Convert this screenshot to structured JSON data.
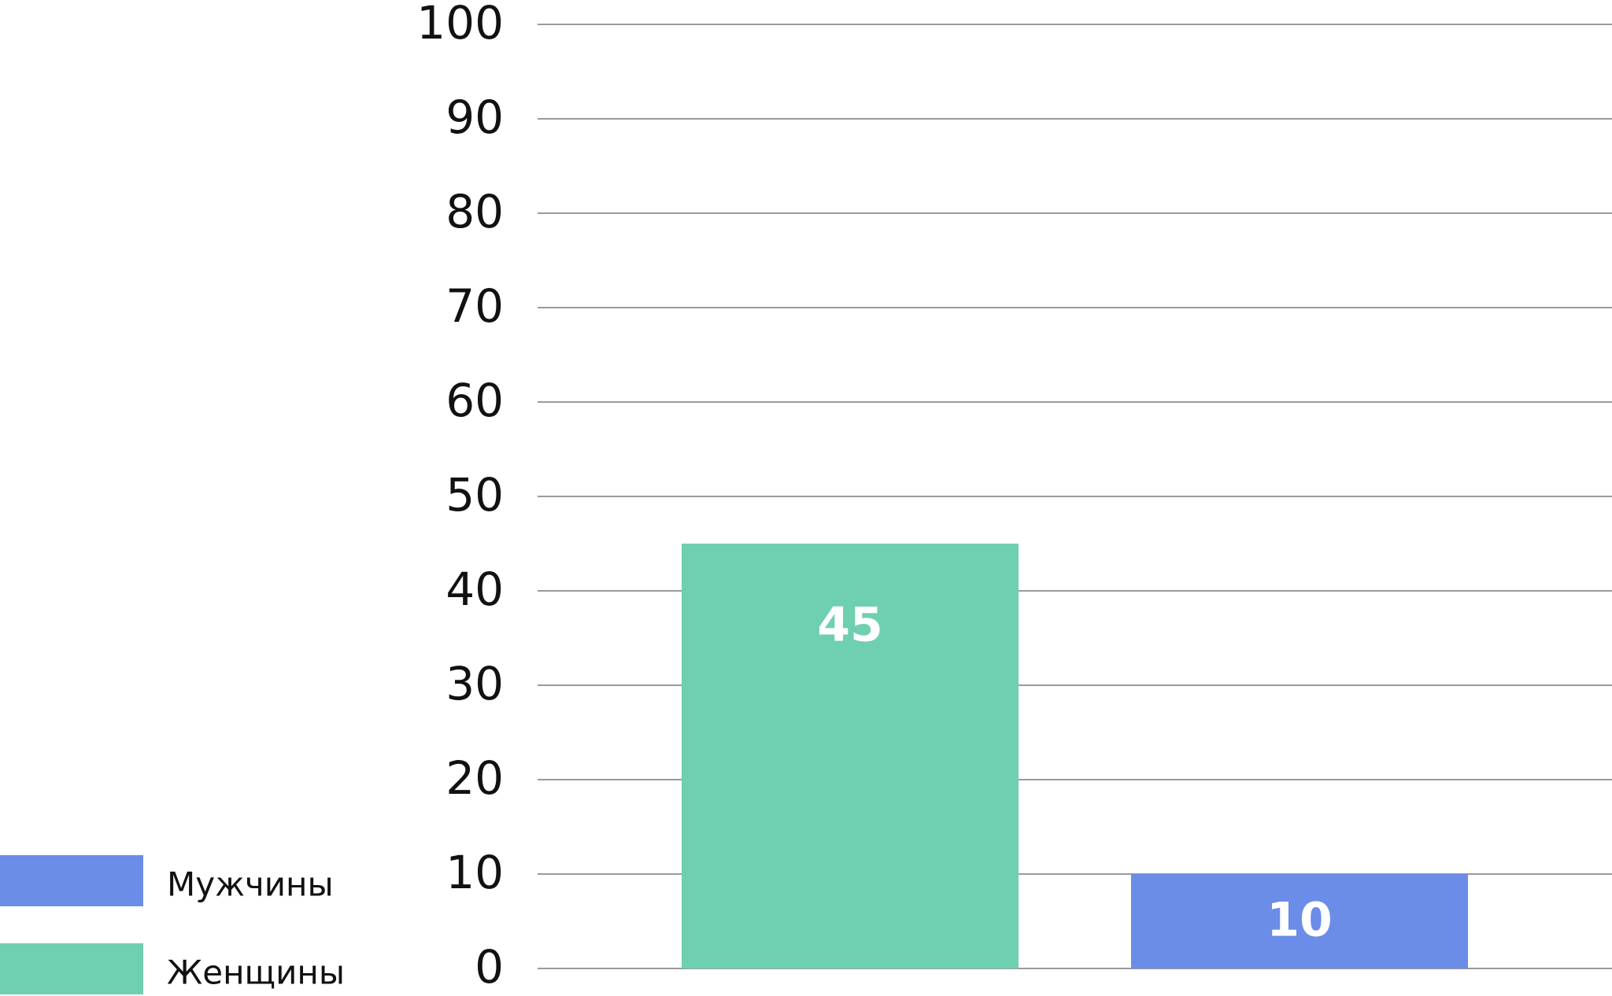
{
  "chart_data": {
    "type": "bar",
    "categories": [
      null,
      null
    ],
    "series": [
      {
        "name": "Мужчины",
        "color": "#6b8de8",
        "values": [
          null,
          10
        ]
      },
      {
        "name": "Женщины",
        "color": "#6ecfb1",
        "values": [
          45,
          null
        ]
      }
    ],
    "ylim": [
      0,
      100
    ],
    "yticks": [
      0,
      10,
      20,
      30,
      40,
      50,
      60,
      70,
      80,
      90,
      100
    ],
    "grid": true,
    "legend": "left"
  }
}
